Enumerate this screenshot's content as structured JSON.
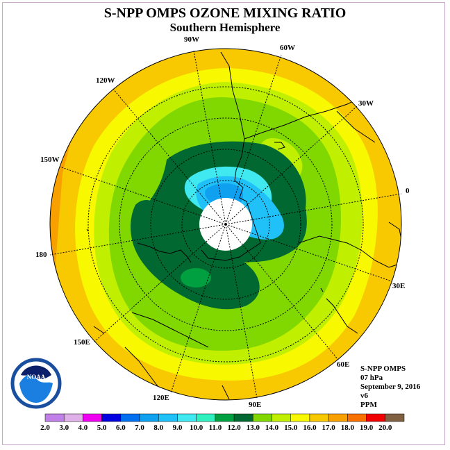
{
  "title": "S-NPP OMPS OZONE MIXING RATIO",
  "subtitle": "Southern Hemisphere",
  "info": {
    "instrument": "S-NPP OMPS",
    "level": "07 hPa",
    "date": "September 9, 2016",
    "version": "v6",
    "units": "PPM"
  },
  "longitude_labels": [
    "90W",
    "60W",
    "30W",
    "0",
    "30E",
    "60E",
    "90E",
    "120E",
    "150E",
    "180",
    "150W",
    "120W"
  ],
  "colorbar": {
    "ticks": [
      "2.0",
      "3.0",
      "4.0",
      "5.0",
      "6.0",
      "7.0",
      "8.0",
      "9.0",
      "10.0",
      "11.0",
      "12.0",
      "13.0",
      "14.0",
      "15.0",
      "16.0",
      "17.0",
      "18.0",
      "19.0",
      "20.0"
    ],
    "colors": [
      "#c080e8",
      "#e0b0e8",
      "#f000f0",
      "#0000e0",
      "#0070f0",
      "#10a0f0",
      "#20c0f8",
      "#40e8f0",
      "#30f0c0",
      "#00a040",
      "#006830",
      "#80d800",
      "#c0f000",
      "#f8f800",
      "#f8c800",
      "#f8a000",
      "#f87000",
      "#f00000",
      "#806040"
    ]
  },
  "logo_text": "NOAA"
}
